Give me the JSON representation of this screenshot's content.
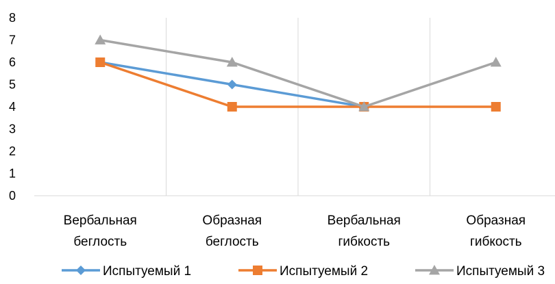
{
  "chart_data": {
    "type": "line",
    "categories": [
      [
        "Вербальная",
        "беглость"
      ],
      [
        "Образная",
        "беглость"
      ],
      [
        "Вербальная",
        "гибкость"
      ],
      [
        "Образная",
        "гибкость"
      ]
    ],
    "ylim": [
      0,
      8
    ],
    "y_ticks": [
      0,
      1,
      2,
      3,
      4,
      5,
      6,
      7,
      8
    ],
    "grid": "vertical",
    "legend_position": "bottom",
    "series": [
      {
        "name": "Испытуемый 1",
        "values": [
          6,
          5,
          4,
          null
        ],
        "color": "#5B9BD5",
        "marker": "diamond"
      },
      {
        "name": "Испытуемый 2",
        "values": [
          6,
          4,
          4,
          4
        ],
        "color": "#ED7D31",
        "marker": "square"
      },
      {
        "name": "Испытуемый 3",
        "values": [
          7,
          6,
          4,
          6
        ],
        "color": "#A5A5A5",
        "marker": "triangle"
      }
    ]
  }
}
